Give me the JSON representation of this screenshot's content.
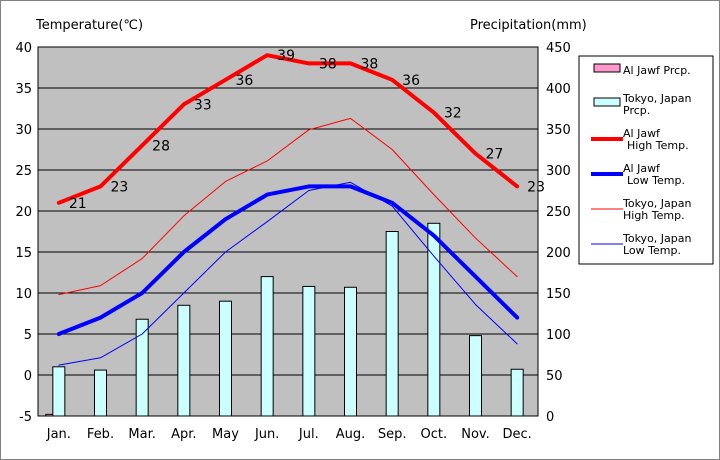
{
  "chart_data": {
    "type": "bar+line",
    "left_axis_label": "Temperature(℃)",
    "right_axis_label": "Precipitation(mm)",
    "categories": [
      "Jan.",
      "Feb.",
      "Mar.",
      "Apr.",
      "May",
      "Jun.",
      "Jul.",
      "Aug.",
      "Sep.",
      "Oct.",
      "Nov.",
      "Dec."
    ],
    "temp_ylim": [
      -5,
      40
    ],
    "temp_ticks": [
      "-5",
      "0",
      "5",
      "10",
      "15",
      "20",
      "25",
      "30",
      "35",
      "40"
    ],
    "precip_ylim": [
      0,
      450
    ],
    "precip_ticks": [
      "0",
      "50",
      "100",
      "150",
      "200",
      "250",
      "300",
      "350",
      "400",
      "450"
    ],
    "grid": true,
    "legend_position": "right",
    "plot_background": "#c0c0c0",
    "bar_series": [
      {
        "name": "Al Jawf Prcp.",
        "color": "#ff99cc",
        "values": [
          2,
          0,
          0,
          0,
          0,
          0,
          0,
          0,
          0,
          0,
          0,
          0
        ]
      },
      {
        "name": "Tokyo, Japan Prcp.",
        "color": "#ccffff",
        "values": [
          60,
          56,
          118,
          135,
          140,
          170,
          158,
          157,
          225,
          235,
          98,
          57
        ]
      }
    ],
    "line_series": [
      {
        "name": "Al Jawf High Temp.",
        "color": "#ff0000",
        "width": 4,
        "values": [
          21,
          23,
          28,
          33,
          36,
          39,
          38,
          38,
          36,
          32,
          27,
          23
        ],
        "labels": [
          "21",
          "23",
          "28",
          "33",
          "36",
          "39",
          "38",
          "38",
          "36",
          "32",
          "27",
          "23"
        ]
      },
      {
        "name": "Al Jawf Low Temp.",
        "color": "#0000ff",
        "width": 4,
        "values": [
          5,
          7,
          10,
          15,
          19,
          22,
          23,
          23,
          21,
          17,
          12,
          7
        ]
      },
      {
        "name": "Tokyo, Japan High Temp.",
        "color": "#ff0000",
        "width": 1,
        "values": [
          9.8,
          10.9,
          14.2,
          19.4,
          23.6,
          26.1,
          29.9,
          31.3,
          27.5,
          22.0,
          16.7,
          12.0
        ]
      },
      {
        "name": "Tokyo, Japan Low Temp.",
        "color": "#0000ff",
        "width": 1,
        "values": [
          1.2,
          2.1,
          5.0,
          10.0,
          15.0,
          18.7,
          22.5,
          23.5,
          20.6,
          14.5,
          8.6,
          3.8
        ]
      }
    ],
    "legend": [
      {
        "lines": [
          "Al Jawf Prcp."
        ],
        "kind": "bar",
        "color": "#ff99cc"
      },
      {
        "lines": [
          "Tokyo, Japan",
          "Prcp."
        ],
        "kind": "bar",
        "color": "#ccffff"
      },
      {
        "lines": [
          "Al Jawf",
          "High Temp."
        ],
        "kind": "line",
        "color": "#ff0000",
        "width": 4
      },
      {
        "lines": [
          "Al Jawf",
          "Low Temp."
        ],
        "kind": "line",
        "color": "#0000ff",
        "width": 4
      },
      {
        "lines": [
          "Tokyo, Japan",
          "High Temp."
        ],
        "kind": "line",
        "color": "#ff0000",
        "width": 1
      },
      {
        "lines": [
          "Tokyo, Japan",
          "Low Temp."
        ],
        "kind": "line",
        "color": "#0000ff",
        "width": 1
      }
    ]
  }
}
